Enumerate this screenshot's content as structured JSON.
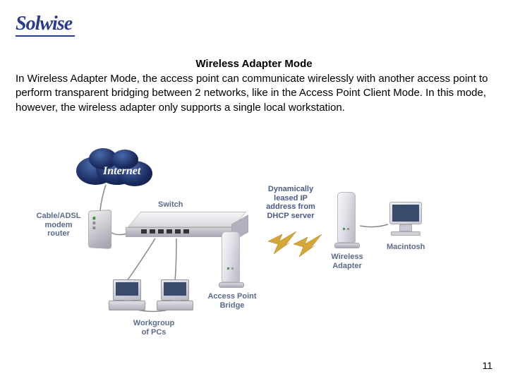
{
  "logo": "Solwise",
  "title": "Wireless Adapter Mode",
  "body": "In Wireless Adapter Mode, the access point can communicate wirelessly with another access point to perform transparent bridging between 2 networks, like in the Access Point Client Mode. In this mode, however, the wireless adapter only supports a single local workstation.",
  "page_number": "11",
  "diagram": {
    "internet": "Internet",
    "modem_label": "Cable/ADSL\nmodem\nrouter",
    "switch_label": "Switch",
    "ap_bridge_label": "Access Point\nBridge",
    "dhcp_label": "Dynamically\nleased IP\naddress from\nDHCP server",
    "wireless_adapter_label": "Wireless\nAdapter",
    "macintosh_label": "Macintosh",
    "workgroup_label": "Workgroup\nof PCs",
    "colors": {
      "label_color": "#5a6a8a",
      "logo_color": "#2a3a8f",
      "cloud_dark": "#0a1530",
      "cloud_mid": "#1a2a5f",
      "cloud_light": "#4a6aaa",
      "device_light": "#f0f0f0",
      "device_dark": "#a0a0b0",
      "bolt_fill": "#d4a837",
      "wire": "#888888"
    }
  }
}
